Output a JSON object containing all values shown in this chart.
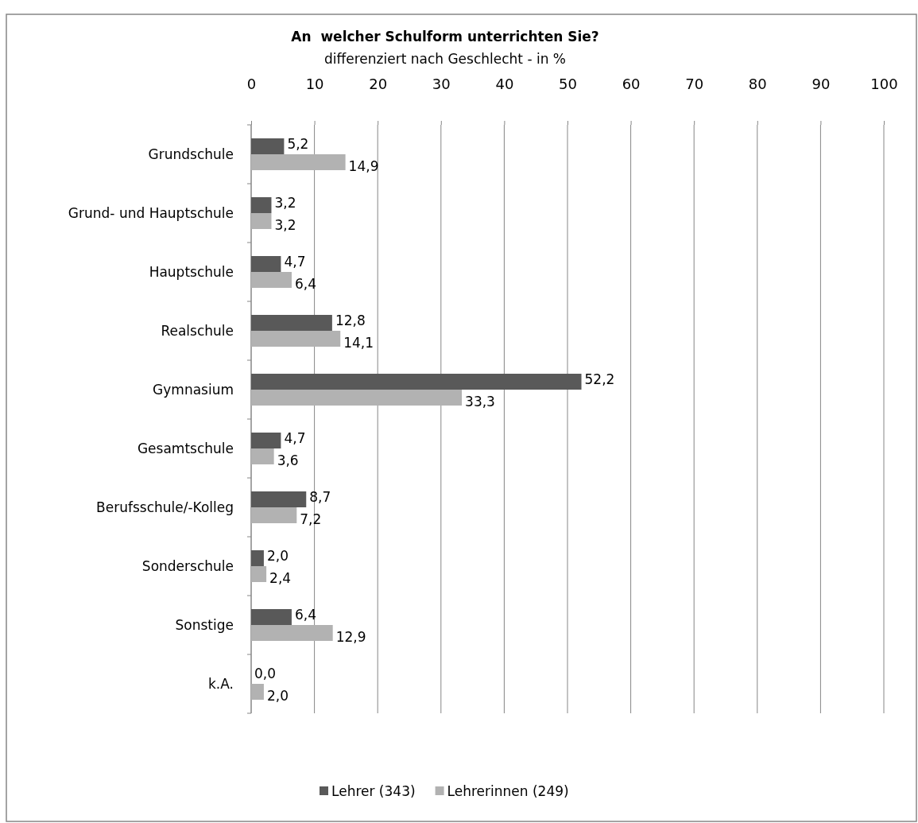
{
  "chart_data": {
    "type": "bar",
    "orientation": "horizontal",
    "title": "An  welcher Schulform unterrichten Sie?",
    "subtitle": "differenziert nach Geschlecht - in %",
    "categories": [
      "Grundschule",
      "Grund- und Hauptschule",
      "Hauptschule",
      "Realschule",
      "Gymnasium",
      "Gesamtschule",
      "Berufsschule/-Kolleg",
      "Sonderschule",
      "Sonstige",
      "k.A."
    ],
    "series": [
      {
        "name": "Lehrer (343)",
        "color": "#595959",
        "values": [
          5.2,
          3.2,
          4.7,
          12.8,
          52.2,
          4.7,
          8.7,
          2.0,
          6.4,
          0.0
        ],
        "value_labels": [
          "5,2",
          "3,2",
          "4,7",
          "12,8",
          "52,2",
          "4,7",
          "8,7",
          "2,0",
          "6,4",
          "0,0"
        ]
      },
      {
        "name": "Lehrerinnen (249)",
        "color": "#b2b2b2",
        "values": [
          14.9,
          3.2,
          6.4,
          14.1,
          33.3,
          3.6,
          7.2,
          2.4,
          12.9,
          2.0
        ],
        "value_labels": [
          "14,9",
          "3,2",
          "6,4",
          "14,1",
          "33,3",
          "3,6",
          "7,2",
          "2,4",
          "12,9",
          "2,0"
        ]
      }
    ],
    "xlim": [
      0,
      100
    ],
    "xticks": [
      0,
      10,
      20,
      30,
      40,
      50,
      60,
      70,
      80,
      90,
      100
    ],
    "grid": "x",
    "legend": "bottom"
  }
}
